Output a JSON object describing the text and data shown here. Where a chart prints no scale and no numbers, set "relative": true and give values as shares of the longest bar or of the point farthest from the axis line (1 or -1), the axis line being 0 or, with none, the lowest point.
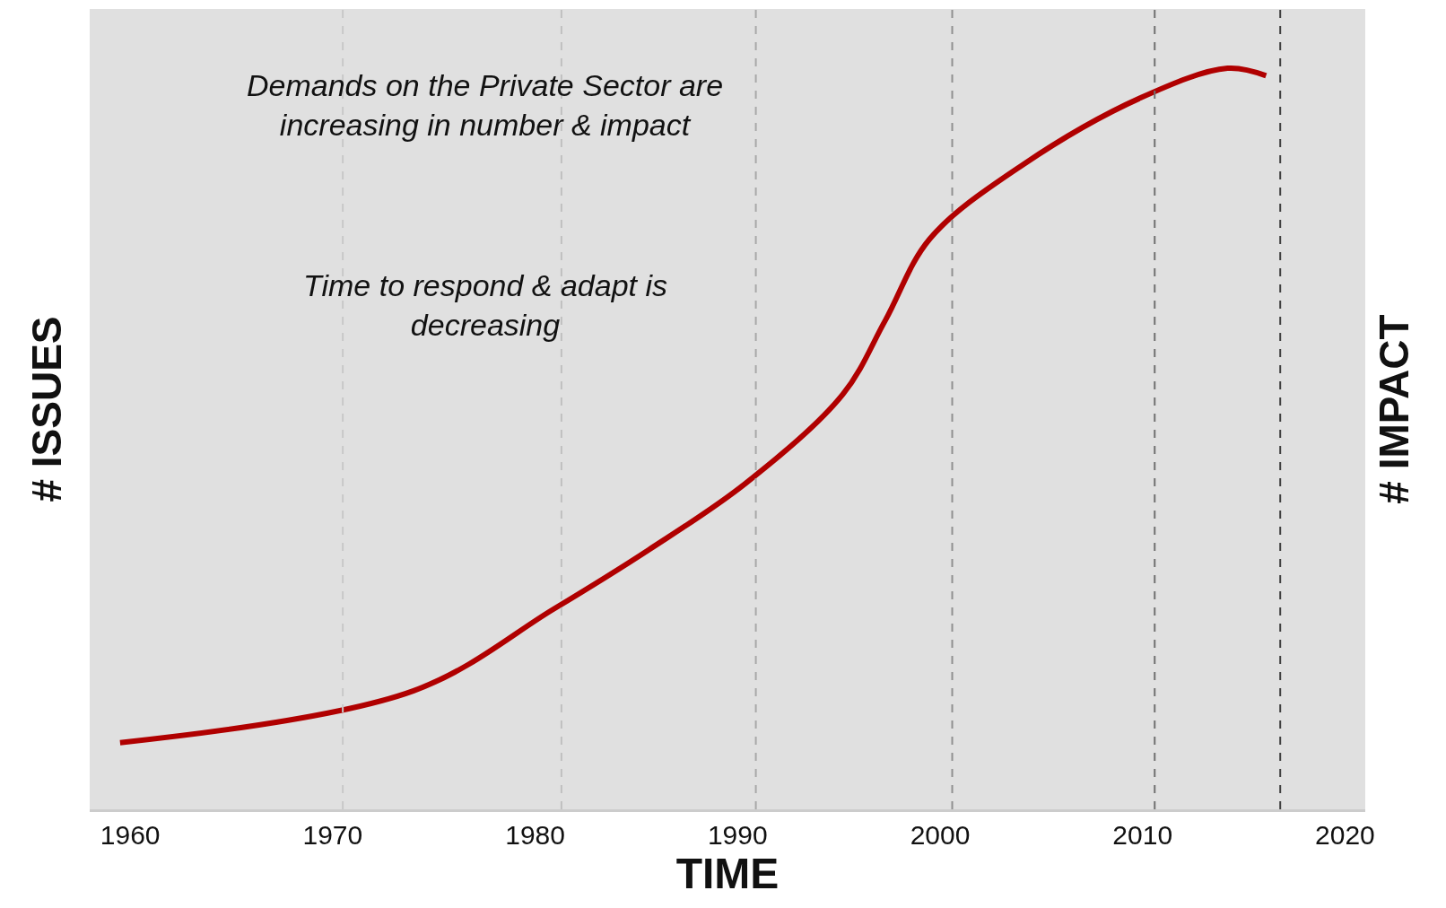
{
  "chart_data": {
    "type": "line",
    "relative": true,
    "xlabel": "TIME",
    "ylabel": "# ISSUES",
    "y2label": "# IMPACT",
    "annotations": [
      "Demands on the Private Sector are\nincreasing in number & impact",
      "Time to respond & adapt is\ndecreasing"
    ],
    "x": [
      1959.5,
      1974.0,
      1980.9,
      1985.6,
      1990.4,
      1995.2,
      1997.3,
      1999.5,
      2004.1,
      2009.9,
      2014.2,
      2016.1
    ],
    "series": [
      {
        "color": "#b00000",
        "values": [
          0.09,
          0.16,
          0.27,
          0.35,
          0.44,
          0.56,
          0.66,
          0.77,
          0.87,
          0.96,
          1.0,
          0.99
        ]
      }
    ],
    "xlim": [
      1958,
      2021
    ],
    "xticks": [
      1960,
      1970,
      1980,
      1990,
      2000,
      2010,
      2020
    ],
    "ref_lines": [
      {
        "axis": "x",
        "value": 1970.5,
        "color": "#c8c8c8",
        "line_style": "dashed"
      },
      {
        "axis": "x",
        "value": 1981.3,
        "color": "#c0c0c0",
        "line_style": "dashed"
      },
      {
        "axis": "x",
        "value": 1990.9,
        "color": "#a8a8a8",
        "line_style": "dashed"
      },
      {
        "axis": "x",
        "value": 2000.6,
        "color": "#909090",
        "line_style": "dashed"
      },
      {
        "axis": "x",
        "value": 2010.6,
        "color": "#707070",
        "line_style": "dashed"
      },
      {
        "axis": "x",
        "value": 2016.8,
        "color": "#404040",
        "line_style": "dashed"
      }
    ],
    "grid": false
  }
}
